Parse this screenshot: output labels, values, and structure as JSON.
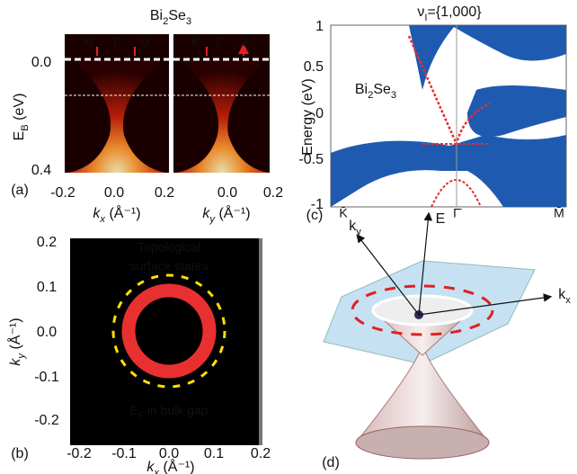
{
  "title": [
    "Bi",
    "2",
    "Se",
    "3"
  ],
  "panel_a": {
    "label": "(a)",
    "left_header": "M̄ ← Γ̄ → M̄",
    "right_header": "K̄← Γ̄ → K̄",
    "y_label": [
      "E",
      "B",
      " (eV)"
    ],
    "y_ticks": [
      "0.0",
      "0.4"
    ],
    "left_x_ticks": [
      "-0.2",
      "0.0",
      "0.2"
    ],
    "right_x_ticks": [
      "0.0",
      "0.2"
    ],
    "left_x_label": [
      "k",
      "x",
      " (Å⁻¹)"
    ],
    "right_x_label": [
      "k",
      "y",
      " (Å⁻¹)"
    ]
  },
  "panel_b": {
    "label": "(b)",
    "y_ticks": [
      "0.2",
      "0.1",
      "0.0",
      "-0.1",
      "-0.2"
    ],
    "x_ticks": [
      "-0.2",
      "-0.1",
      "0.0",
      "0.1",
      "0.2"
    ],
    "y_label": [
      "k",
      "y",
      " (Å⁻¹)"
    ],
    "x_label": [
      "k",
      "x",
      " (Å⁻¹)"
    ],
    "text_line1": "Topological",
    "text_line2": "surface states",
    "bottom_text": [
      "E",
      "F",
      " in bulk gap"
    ]
  },
  "panel_c": {
    "label": "(c)",
    "title": [
      "ν",
      "I",
      "={1,000}"
    ],
    "y_ticks": [
      "1",
      "0.5",
      "0",
      "-0.5",
      "-1"
    ],
    "y_label": "Energy (eV)",
    "x_ticks": [
      "K̄",
      "Γ̄",
      "M̄"
    ],
    "material": [
      "Bi",
      "2",
      "Se",
      "3"
    ]
  },
  "panel_d": {
    "label": "(d)",
    "axis_ky": [
      "k",
      "y"
    ],
    "axis_e": "E",
    "axis_kx": [
      "k",
      "x"
    ]
  }
}
